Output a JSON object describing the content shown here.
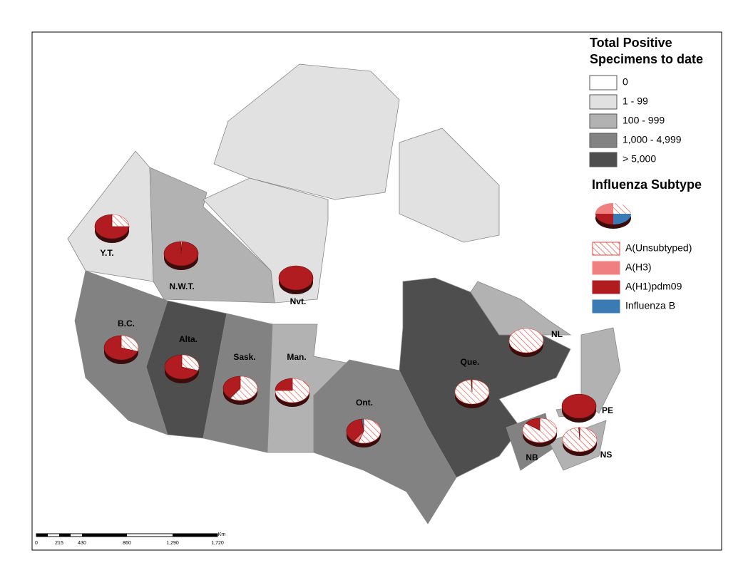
{
  "map": {
    "legend": {
      "title_lines": [
        "Total Positive",
        "Specimens to date"
      ],
      "classes": [
        {
          "label": "0",
          "color": "#ffffff"
        },
        {
          "label": "1 - 99",
          "color": "#e1e1e1"
        },
        {
          "label": "100 - 999",
          "color": "#b2b2b2"
        },
        {
          "label": "1,000 - 4,999",
          "color": "#828282"
        },
        {
          "label": "> 5,000",
          "color": "#4e4e4e"
        }
      ]
    },
    "subtype_legend": {
      "title": "Influenza Subtype",
      "subtypes": [
        {
          "name": "A(Unsubtyped)",
          "color": "#e8423a",
          "hatch": true
        },
        {
          "name": "A(H3)",
          "color": "#f08080"
        },
        {
          "name": "A(H1)pdm09",
          "color": "#b01c1f"
        },
        {
          "name": "Influenza B",
          "color": "#3a7ab5"
        }
      ]
    },
    "provinces": [
      {
        "label": "Y.T.",
        "class": 1,
        "shares": [
          25,
          0,
          75,
          0
        ]
      },
      {
        "label": "N.W.T.",
        "class": 2,
        "shares": [
          1,
          0,
          99,
          0
        ]
      },
      {
        "label": "Nvt.",
        "class": 1,
        "shares": [
          0,
          0,
          100,
          0
        ]
      },
      {
        "label": "B.C.",
        "class": 3,
        "shares": [
          30,
          0,
          70,
          0
        ]
      },
      {
        "label": "Alta.",
        "class": 4,
        "shares": [
          30,
          0,
          70,
          0
        ]
      },
      {
        "label": "Sask.",
        "class": 3,
        "shares": [
          60,
          0,
          40,
          0
        ]
      },
      {
        "label": "Man.",
        "class": 2,
        "shares": [
          75,
          0,
          25,
          0
        ]
      },
      {
        "label": "Ont.",
        "class": 3,
        "shares": [
          55,
          5,
          38,
          2
        ]
      },
      {
        "label": "Que.",
        "class": 4,
        "shares": [
          99,
          0,
          1,
          0
        ]
      },
      {
        "label": "NL",
        "class": 2,
        "shares": [
          100,
          0,
          0,
          0
        ]
      },
      {
        "label": "PE",
        "class": 2,
        "shares": [
          0,
          0,
          100,
          0
        ]
      },
      {
        "label": "NB",
        "class": 3,
        "shares": [
          85,
          0,
          15,
          0
        ]
      },
      {
        "label": "NS",
        "class": 2,
        "shares": [
          99,
          0,
          1,
          0
        ]
      }
    ],
    "scale_bar": {
      "labels": [
        "0",
        "215",
        "430",
        "860",
        "1,290",
        "1,720"
      ],
      "unit": "Km"
    }
  }
}
